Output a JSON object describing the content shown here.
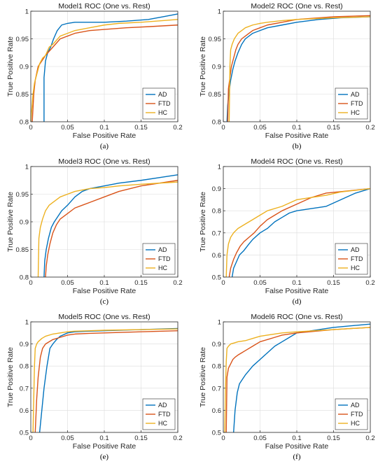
{
  "colors": {
    "AD": "#0072BD",
    "FTD": "#D95319",
    "HC": "#EDB120",
    "axis": "#262626",
    "grid": "#DCDCDC"
  },
  "chart_data": [
    {
      "type": "line",
      "panel_label": "(a)",
      "title": "Model1 ROC (One vs. Rest)",
      "xlabel": "False Positive Rate",
      "ylabel": "True Positive Rate",
      "xlim": [
        0,
        0.2
      ],
      "ylim": [
        0.8,
        1
      ],
      "xticks": [
        "0",
        "0.05",
        "0.1",
        "0.15",
        "0.2"
      ],
      "yticks": [
        "0.8",
        "0.85",
        "0.9",
        "0.95",
        "1"
      ],
      "grid": true,
      "legend": "bottom-right",
      "series": [
        {
          "name": "AD",
          "x": [
            0.018,
            0.018,
            0.02,
            0.023,
            0.027,
            0.031,
            0.036,
            0.042,
            0.05,
            0.06,
            0.075,
            0.1,
            0.13,
            0.16,
            0.18,
            0.2
          ],
          "y": [
            0.8,
            0.88,
            0.91,
            0.925,
            0.935,
            0.95,
            0.965,
            0.975,
            0.978,
            0.98,
            0.98,
            0.98,
            0.982,
            0.985,
            0.99,
            0.995
          ]
        },
        {
          "name": "FTD",
          "x": [
            0.002,
            0.004,
            0.006,
            0.01,
            0.015,
            0.02,
            0.03,
            0.04,
            0.05,
            0.06,
            0.08,
            0.1,
            0.13,
            0.16,
            0.2
          ],
          "y": [
            0.8,
            0.85,
            0.875,
            0.9,
            0.91,
            0.92,
            0.935,
            0.95,
            0.955,
            0.96,
            0.965,
            0.967,
            0.97,
            0.972,
            0.975
          ]
        },
        {
          "name": "HC",
          "x": [
            0.0,
            0.003,
            0.005,
            0.008,
            0.012,
            0.016,
            0.02,
            0.025,
            0.03,
            0.04,
            0.05,
            0.06,
            0.08,
            0.1,
            0.12,
            0.15,
            0.18,
            0.2
          ],
          "y": [
            0.8,
            0.85,
            0.87,
            0.885,
            0.905,
            0.915,
            0.92,
            0.935,
            0.94,
            0.955,
            0.96,
            0.965,
            0.97,
            0.975,
            0.978,
            0.98,
            0.983,
            0.985
          ]
        }
      ]
    },
    {
      "type": "line",
      "panel_label": "(b)",
      "title": "Model2 ROC (One vs. Rest)",
      "xlabel": "False Positive Rate",
      "ylabel": "True Positive Rate",
      "xlim": [
        0,
        0.2
      ],
      "ylim": [
        0.8,
        1
      ],
      "xticks": [
        "0",
        "0.05",
        "0.1",
        "0.15",
        "0.2"
      ],
      "yticks": [
        "0.8",
        "0.85",
        "0.9",
        "0.95",
        "1"
      ],
      "grid": true,
      "legend": "bottom-right",
      "series": [
        {
          "name": "AD",
          "x": [
            0.005,
            0.006,
            0.008,
            0.01,
            0.013,
            0.016,
            0.02,
            0.025,
            0.03,
            0.04,
            0.05,
            0.06,
            0.08,
            0.1,
            0.13,
            0.16,
            0.2
          ],
          "y": [
            0.8,
            0.83,
            0.855,
            0.875,
            0.895,
            0.91,
            0.925,
            0.94,
            0.95,
            0.96,
            0.965,
            0.97,
            0.975,
            0.98,
            0.985,
            0.988,
            0.99
          ]
        },
        {
          "name": "FTD",
          "x": [
            0.006,
            0.007,
            0.009,
            0.011,
            0.014,
            0.017,
            0.02,
            0.025,
            0.03,
            0.035,
            0.04,
            0.05,
            0.06,
            0.08,
            0.1,
            0.15,
            0.2
          ],
          "y": [
            0.8,
            0.86,
            0.88,
            0.9,
            0.915,
            0.93,
            0.94,
            0.95,
            0.955,
            0.96,
            0.965,
            0.97,
            0.975,
            0.98,
            0.985,
            0.99,
            0.992
          ]
        },
        {
          "name": "HC",
          "x": [
            0.008,
            0.009,
            0.01,
            0.012,
            0.015,
            0.02,
            0.025,
            0.03,
            0.04,
            0.05,
            0.06,
            0.08,
            0.1,
            0.15,
            0.2
          ],
          "y": [
            0.8,
            0.9,
            0.93,
            0.94,
            0.95,
            0.96,
            0.965,
            0.97,
            0.975,
            0.978,
            0.98,
            0.983,
            0.985,
            0.988,
            0.99
          ]
        }
      ]
    },
    {
      "type": "line",
      "panel_label": "(c)",
      "title": "Model3 ROC (One vs. Rest)",
      "xlabel": "False Positive Rate",
      "ylabel": "True Positive Rate",
      "xlim": [
        0,
        0.2
      ],
      "ylim": [
        0.8,
        1
      ],
      "xticks": [
        "0",
        "0.05",
        "0.1",
        "0.15",
        "0.2"
      ],
      "yticks": [
        "0.8",
        "0.85",
        "0.9",
        "0.95",
        "1"
      ],
      "grid": true,
      "legend": "bottom-right",
      "series": [
        {
          "name": "AD",
          "x": [
            0.018,
            0.019,
            0.021,
            0.024,
            0.028,
            0.032,
            0.037,
            0.042,
            0.05,
            0.06,
            0.07,
            0.08,
            0.1,
            0.12,
            0.15,
            0.2
          ],
          "y": [
            0.8,
            0.83,
            0.85,
            0.87,
            0.89,
            0.9,
            0.91,
            0.92,
            0.93,
            0.945,
            0.955,
            0.96,
            0.965,
            0.97,
            0.975,
            0.985
          ]
        },
        {
          "name": "FTD",
          "x": [
            0.02,
            0.021,
            0.023,
            0.026,
            0.03,
            0.035,
            0.04,
            0.05,
            0.06,
            0.07,
            0.08,
            0.1,
            0.12,
            0.15,
            0.2
          ],
          "y": [
            0.8,
            0.82,
            0.84,
            0.86,
            0.88,
            0.895,
            0.905,
            0.915,
            0.925,
            0.93,
            0.935,
            0.945,
            0.955,
            0.965,
            0.975
          ]
        },
        {
          "name": "HC",
          "x": [
            0.01,
            0.011,
            0.013,
            0.016,
            0.02,
            0.025,
            0.03,
            0.04,
            0.05,
            0.06,
            0.08,
            0.1,
            0.12,
            0.15,
            0.2
          ],
          "y": [
            0.8,
            0.87,
            0.89,
            0.905,
            0.92,
            0.93,
            0.935,
            0.945,
            0.95,
            0.955,
            0.96,
            0.962,
            0.965,
            0.968,
            0.972
          ]
        }
      ]
    },
    {
      "type": "line",
      "panel_label": "(d)",
      "title": "Model4 ROC (One vs. Rest)",
      "xlabel": "False Positive Rate",
      "ylabel": "True Positive Rate",
      "xlim": [
        0,
        0.2
      ],
      "ylim": [
        0.5,
        1
      ],
      "xticks": [
        "0",
        "0.05",
        "0.1",
        "0.15",
        "0.2"
      ],
      "yticks": [
        "0.5",
        "0.6",
        "0.7",
        "0.8",
        "0.9",
        "1"
      ],
      "grid": true,
      "legend": "bottom-right",
      "series": [
        {
          "name": "AD",
          "x": [
            0.012,
            0.014,
            0.018,
            0.022,
            0.028,
            0.035,
            0.04,
            0.05,
            0.06,
            0.07,
            0.08,
            0.09,
            0.1,
            0.12,
            0.14,
            0.16,
            0.18,
            0.2
          ],
          "y": [
            0.5,
            0.54,
            0.57,
            0.6,
            0.62,
            0.65,
            0.67,
            0.7,
            0.72,
            0.75,
            0.77,
            0.79,
            0.8,
            0.81,
            0.82,
            0.85,
            0.88,
            0.9
          ]
        },
        {
          "name": "FTD",
          "x": [
            0.008,
            0.01,
            0.014,
            0.018,
            0.023,
            0.028,
            0.035,
            0.042,
            0.05,
            0.06,
            0.07,
            0.08,
            0.1,
            0.12,
            0.14,
            0.17,
            0.2
          ],
          "y": [
            0.5,
            0.54,
            0.58,
            0.61,
            0.64,
            0.66,
            0.68,
            0.7,
            0.73,
            0.76,
            0.78,
            0.8,
            0.83,
            0.86,
            0.88,
            0.89,
            0.9
          ]
        },
        {
          "name": "HC",
          "x": [
            0.004,
            0.005,
            0.007,
            0.01,
            0.014,
            0.02,
            0.03,
            0.04,
            0.05,
            0.06,
            0.08,
            0.1,
            0.12,
            0.14,
            0.16,
            0.2
          ],
          "y": [
            0.5,
            0.6,
            0.65,
            0.68,
            0.7,
            0.72,
            0.74,
            0.76,
            0.78,
            0.8,
            0.82,
            0.85,
            0.86,
            0.87,
            0.885,
            0.9
          ]
        }
      ]
    },
    {
      "type": "line",
      "panel_label": "(e)",
      "title": "Model5 ROC (One vs. Rest)",
      "xlabel": "False Positive Rate",
      "ylabel": "True Positive Rate",
      "xlim": [
        0,
        0.2
      ],
      "ylim": [
        0.5,
        1
      ],
      "xticks": [
        "0",
        "0.05",
        "0.1",
        "0.15",
        "0.2"
      ],
      "yticks": [
        "0.5",
        "0.6",
        "0.7",
        "0.8",
        "0.9",
        "1"
      ],
      "grid": true,
      "legend": "bottom-right",
      "series": [
        {
          "name": "AD",
          "x": [
            0.012,
            0.015,
            0.018,
            0.022,
            0.026,
            0.03,
            0.035,
            0.04,
            0.05,
            0.06,
            0.08,
            0.1,
            0.15,
            0.2
          ],
          "y": [
            0.5,
            0.6,
            0.7,
            0.8,
            0.88,
            0.9,
            0.92,
            0.935,
            0.95,
            0.955,
            0.958,
            0.96,
            0.965,
            0.97
          ]
        },
        {
          "name": "FTD",
          "x": [
            0.006,
            0.008,
            0.01,
            0.013,
            0.016,
            0.02,
            0.03,
            0.04,
            0.05,
            0.06,
            0.08,
            0.1,
            0.15,
            0.2
          ],
          "y": [
            0.5,
            0.65,
            0.75,
            0.84,
            0.88,
            0.9,
            0.92,
            0.93,
            0.94,
            0.945,
            0.948,
            0.95,
            0.955,
            0.96
          ]
        },
        {
          "name": "HC",
          "x": [
            0.003,
            0.004,
            0.005,
            0.006,
            0.008,
            0.01,
            0.015,
            0.02,
            0.03,
            0.04,
            0.05,
            0.06,
            0.08,
            0.1,
            0.15,
            0.2
          ],
          "y": [
            0.5,
            0.65,
            0.8,
            0.88,
            0.9,
            0.91,
            0.925,
            0.935,
            0.945,
            0.95,
            0.955,
            0.958,
            0.96,
            0.962,
            0.965,
            0.968
          ]
        }
      ]
    },
    {
      "type": "line",
      "panel_label": "(f)",
      "title": "Model6 ROC (One vs. Rest)",
      "xlabel": "False Positive Rate",
      "ylabel": "True Positive Rate",
      "xlim": [
        0,
        0.2
      ],
      "ylim": [
        0.5,
        1
      ],
      "xticks": [
        "0",
        "0.05",
        "0.1",
        "0.15",
        "0.2"
      ],
      "yticks": [
        "0.5",
        "0.6",
        "0.7",
        "0.8",
        "0.9",
        "1"
      ],
      "grid": true,
      "legend": "bottom-right",
      "series": [
        {
          "name": "AD",
          "x": [
            0.014,
            0.016,
            0.019,
            0.022,
            0.026,
            0.03,
            0.035,
            0.04,
            0.05,
            0.06,
            0.07,
            0.08,
            0.09,
            0.1,
            0.12,
            0.15,
            0.2
          ],
          "y": [
            0.5,
            0.6,
            0.68,
            0.72,
            0.74,
            0.76,
            0.78,
            0.8,
            0.83,
            0.86,
            0.89,
            0.91,
            0.93,
            0.95,
            0.96,
            0.975,
            0.99
          ]
        },
        {
          "name": "FTD",
          "x": [
            0.004,
            0.005,
            0.007,
            0.01,
            0.013,
            0.016,
            0.02,
            0.025,
            0.03,
            0.04,
            0.05,
            0.06,
            0.07,
            0.08,
            0.1,
            0.15,
            0.2
          ],
          "y": [
            0.5,
            0.75,
            0.79,
            0.81,
            0.83,
            0.84,
            0.85,
            0.86,
            0.87,
            0.89,
            0.91,
            0.92,
            0.93,
            0.94,
            0.95,
            0.965,
            0.975
          ]
        },
        {
          "name": "HC",
          "x": [
            0.002,
            0.003,
            0.004,
            0.005,
            0.007,
            0.01,
            0.015,
            0.02,
            0.03,
            0.04,
            0.05,
            0.06,
            0.08,
            0.1,
            0.15,
            0.2
          ],
          "y": [
            0.5,
            0.7,
            0.82,
            0.88,
            0.89,
            0.9,
            0.905,
            0.91,
            0.915,
            0.925,
            0.935,
            0.94,
            0.95,
            0.955,
            0.965,
            0.975
          ]
        }
      ]
    }
  ]
}
